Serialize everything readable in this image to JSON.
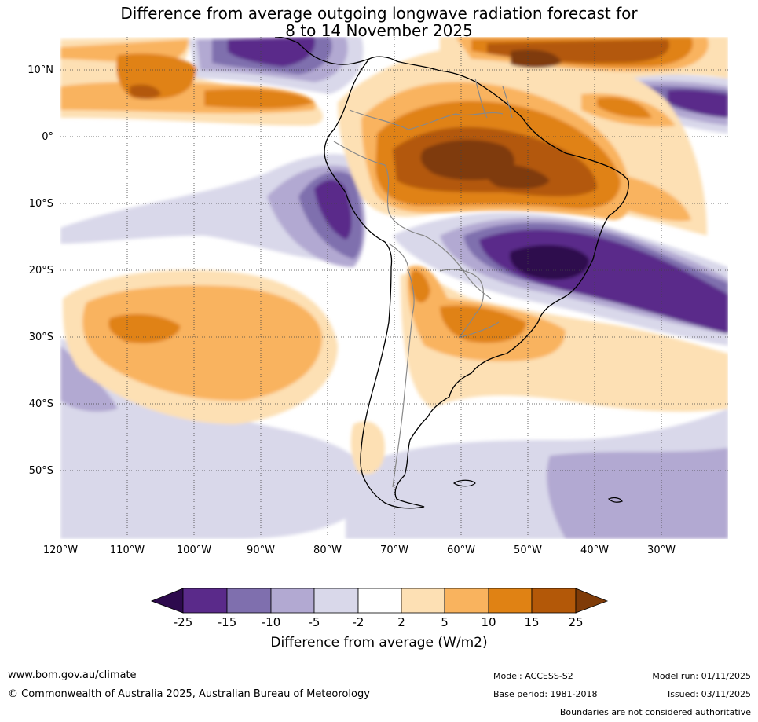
{
  "title": {
    "line1": "Difference from average outgoing longwave radiation forecast for",
    "line2": "8 to 14 November 2025"
  },
  "map": {
    "region": "South America and surrounding oceans",
    "lat_labels": [
      "10°N",
      "0°",
      "10°S",
      "20°S",
      "30°S",
      "40°S",
      "50°S"
    ],
    "lon_labels": [
      "120°W",
      "110°W",
      "100°W",
      "90°W",
      "80°W",
      "70°W",
      "60°W",
      "50°W",
      "40°W",
      "30°W"
    ]
  },
  "colorbar": {
    "ticks": [
      "-25",
      "-15",
      "-10",
      "-5",
      "-2",
      "2",
      "5",
      "10",
      "15",
      "25"
    ],
    "colors": {
      "below_-25": "#2d0a4d",
      "-25_-15": "#5a2a8a",
      "-15_-10": "#7f6fae",
      "-10_-5": "#b2a9d2",
      "-5_-2": "#d9d8ea",
      "-2_2": "#ffffff",
      "2_5": "#fde0b4",
      "5_10": "#f9b35e",
      "10_15": "#e08214",
      "15_25": "#b35808",
      "above_25": "#7f3b08"
    },
    "label": "Difference from average (W/m2)"
  },
  "footer": {
    "website": "www.bom.gov.au/climate",
    "copyright": "© Commonwealth of Australia 2025, Australian Bureau of Meteorology",
    "model": "Model: ACCESS-S2",
    "base_period": "Base period: 1981-2018",
    "model_run": "Model run: 01/11/2025",
    "issued": "Issued: 03/11/2025",
    "disclaimer": "Boundaries are not considered authoritative"
  }
}
